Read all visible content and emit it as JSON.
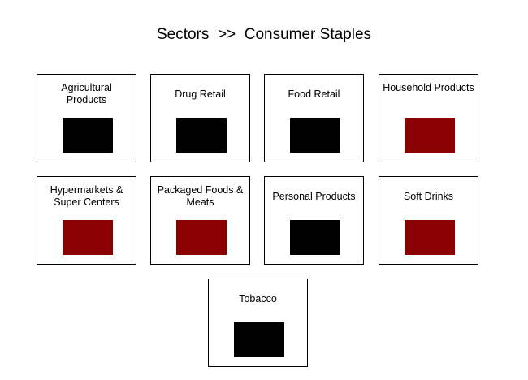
{
  "header": {
    "breadcrumb_root": "Sectors",
    "breadcrumb_separator": ">>",
    "breadcrumb_current": "Consumer Staples"
  },
  "colors": {
    "neutral": "#000000",
    "negative": "#8b0000"
  },
  "industries": [
    {
      "label": "Agricultural Products",
      "status": "neutral"
    },
    {
      "label": "Drug Retail",
      "status": "neutral"
    },
    {
      "label": "Food Retail",
      "status": "neutral"
    },
    {
      "label": "Household Products",
      "status": "negative"
    },
    {
      "label": "Hypermarkets & Super Centers",
      "status": "negative"
    },
    {
      "label": "Packaged Foods & Meats",
      "status": "negative"
    },
    {
      "label": "Personal Products",
      "status": "neutral"
    },
    {
      "label": "Soft Drinks",
      "status": "negative"
    },
    {
      "label": "Tobacco",
      "status": "neutral"
    }
  ]
}
